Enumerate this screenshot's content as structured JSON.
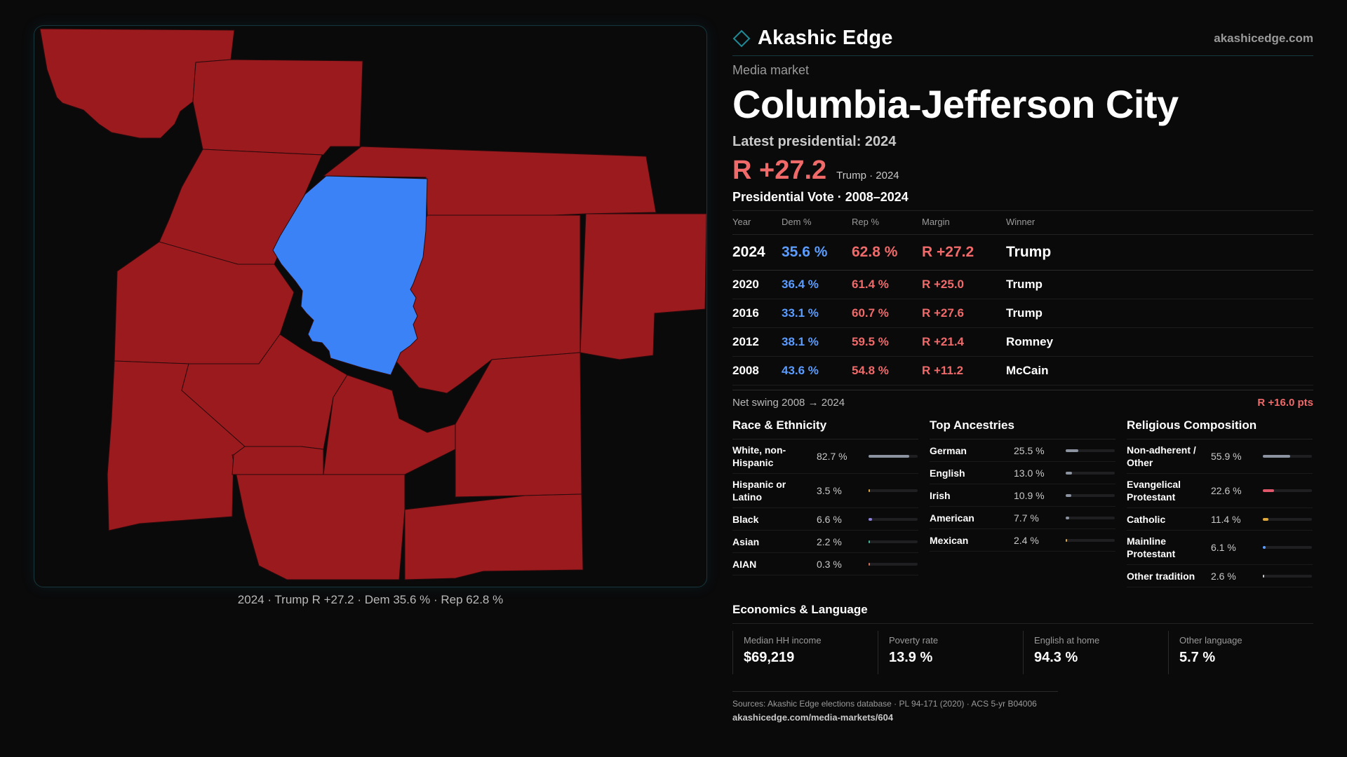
{
  "brand": {
    "name": "Akashic Edge",
    "site": "akashicedge.com"
  },
  "market": {
    "eyebrow": "Media market",
    "name": "Columbia-Jefferson City",
    "latest_label": "Latest presidential: 2024",
    "headline_margin": "R +27.2",
    "headline_note": "Trump · 2024"
  },
  "map": {
    "caption": "2024 · Trump R +27.2 · Dem 35.6 % · Rep 62.8 %",
    "colors": {
      "rep": "#9b1a1e",
      "dem": "#3b82f6"
    }
  },
  "vote": {
    "title": "Presidential Vote · 2008–2024",
    "headers": [
      "Year",
      "Dem %",
      "Rep %",
      "Margin",
      "Winner"
    ],
    "rows": [
      {
        "year": "2024",
        "dem": "35.6 %",
        "rep": "62.8 %",
        "margin": "R +27.2",
        "winner": "Trump"
      },
      {
        "year": "2020",
        "dem": "36.4 %",
        "rep": "61.4 %",
        "margin": "R +25.0",
        "winner": "Trump"
      },
      {
        "year": "2016",
        "dem": "33.1 %",
        "rep": "60.7 %",
        "margin": "R +27.6",
        "winner": "Trump"
      },
      {
        "year": "2012",
        "dem": "38.1 %",
        "rep": "59.5 %",
        "margin": "R +21.4",
        "winner": "Romney"
      },
      {
        "year": "2008",
        "dem": "43.6 %",
        "rep": "54.8 %",
        "margin": "R +11.2",
        "winner": "McCain"
      }
    ],
    "swing_label": "Net swing 2008 → 2024",
    "swing_value": "R +16.0 pts"
  },
  "race": {
    "title": "Race & Ethnicity",
    "rows": [
      {
        "label": "White, non-Hispanic",
        "value": "82.7 %",
        "pct": 82.7,
        "color": "#8b93a1"
      },
      {
        "label": "Hispanic or Latino",
        "value": "3.5 %",
        "pct": 3.5,
        "color": "#e0a83a"
      },
      {
        "label": "Black",
        "value": "6.6 %",
        "pct": 6.6,
        "color": "#8b7fd6"
      },
      {
        "label": "Asian",
        "value": "2.2 %",
        "pct": 2.2,
        "color": "#3fb59a"
      },
      {
        "label": "AIAN",
        "value": "0.3 %",
        "pct": 0.3,
        "color": "#d0705a"
      }
    ]
  },
  "ancestry": {
    "title": "Top Ancestries",
    "rows": [
      {
        "label": "German",
        "value": "25.5 %",
        "pct": 25.5,
        "color": "#8b93a1"
      },
      {
        "label": "English",
        "value": "13.0 %",
        "pct": 13.0,
        "color": "#8b93a1"
      },
      {
        "label": "Irish",
        "value": "10.9 %",
        "pct": 10.9,
        "color": "#8b93a1"
      },
      {
        "label": "American",
        "value": "7.7 %",
        "pct": 7.7,
        "color": "#8b93a1"
      },
      {
        "label": "Mexican",
        "value": "2.4 %",
        "pct": 2.4,
        "color": "#e0a83a"
      }
    ]
  },
  "religion": {
    "title": "Religious Composition",
    "rows": [
      {
        "label": "Non-adherent / Other",
        "value": "55.9 %",
        "pct": 55.9,
        "color": "#8b93a1"
      },
      {
        "label": "Evangelical Protestant",
        "value": "22.6 %",
        "pct": 22.6,
        "color": "#e0566a"
      },
      {
        "label": "Catholic",
        "value": "11.4 %",
        "pct": 11.4,
        "color": "#e0a83a"
      },
      {
        "label": "Mainline Protestant",
        "value": "6.1 %",
        "pct": 6.1,
        "color": "#5b9cff"
      },
      {
        "label": "Other tradition",
        "value": "2.6 %",
        "pct": 2.6,
        "color": "#c9c9c9"
      }
    ]
  },
  "econ": {
    "title": "Economics & Language",
    "cells": [
      {
        "label": "Median HH income",
        "value": "$69,219"
      },
      {
        "label": "Poverty rate",
        "value": "13.9 %"
      },
      {
        "label": "English at home",
        "value": "94.3 %"
      },
      {
        "label": "Other language",
        "value": "5.7 %"
      }
    ]
  },
  "sources": {
    "text": "Sources: Akashic Edge elections database · PL 94-171 (2020) · ACS 5-yr B04006",
    "url": "akashicedge.com/media-markets/604"
  }
}
